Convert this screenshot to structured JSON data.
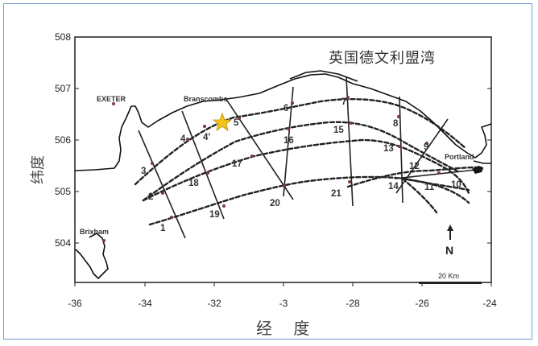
{
  "map": {
    "title": "英国德文利盟湾",
    "xlabel": "经 度",
    "ylabel": "纬度",
    "y_ticks": [
      "508",
      "507",
      "506",
      "505",
      "504"
    ],
    "x_ticks": [
      "-36",
      "-34",
      "-32",
      "-3",
      "-28",
      "-26",
      "-24"
    ],
    "towns": {
      "exeter": "EXETER",
      "branscombe": "Branscombe",
      "brixham": "Brixham",
      "portland": "Portland"
    },
    "survey_lines": {
      "l1": "1",
      "l2": "2",
      "l3": "3",
      "l4": "4",
      "l4p": "4'",
      "l5": "5",
      "l6": "6",
      "l7": "7",
      "l8": "8",
      "l9": "9",
      "l10": "10",
      "l11": "11",
      "l12": "12",
      "l13": "13",
      "l14": "14",
      "l15": "15",
      "l16": "16",
      "l17": "17",
      "l18": "18",
      "l19": "19",
      "l20": "20",
      "l21": "21"
    },
    "north_label": "N",
    "scale_label": "20 Km",
    "colors": {
      "frame": "#6f9fd8",
      "star": "#f5c518",
      "lines": "#222222"
    }
  }
}
